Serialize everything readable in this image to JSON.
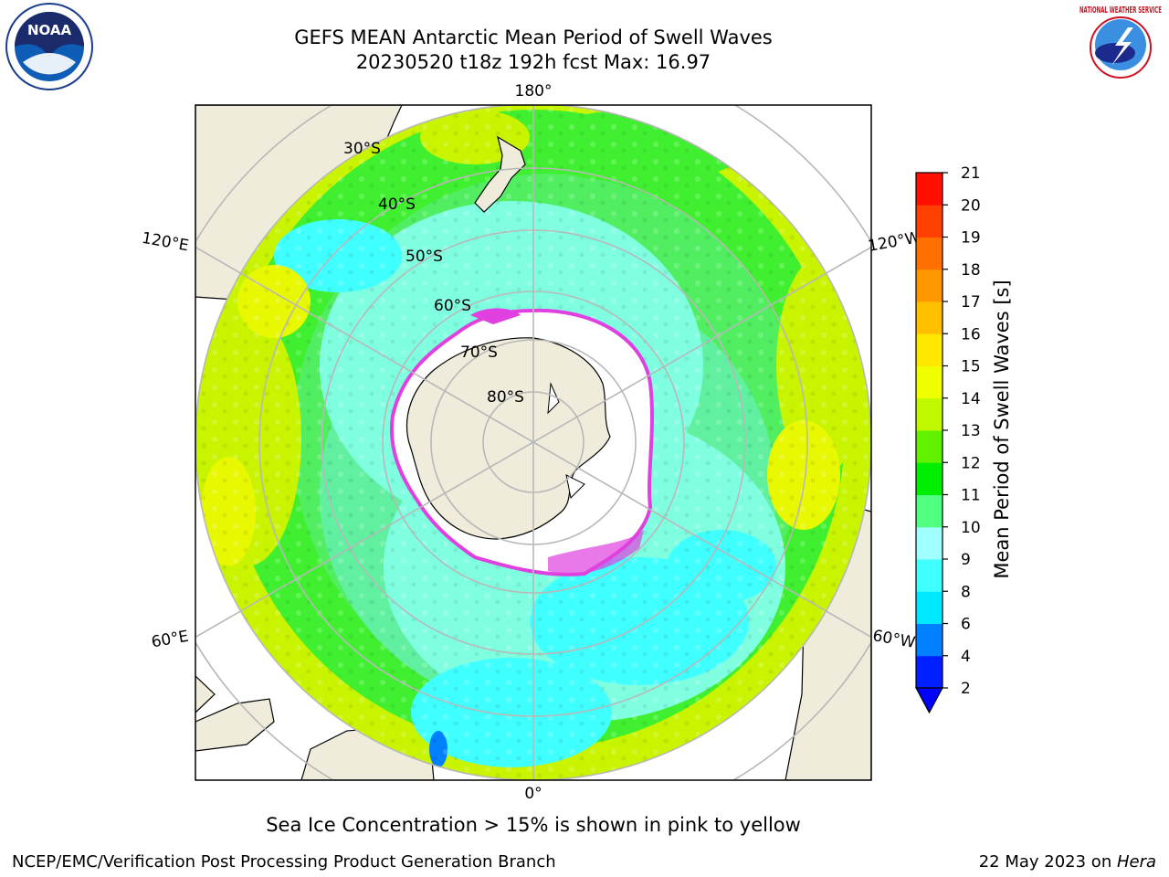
{
  "title_line1": "GEFS MEAN Antarctic Mean Period of Swell Waves",
  "title_line2": "20230520 t18z 192h fcst   Max: 16.97",
  "map": {
    "lon_labels": [
      "180°",
      "120°E",
      "120°W",
      "60°E",
      "60°W",
      "0°"
    ],
    "lat_labels": [
      "30°S",
      "40°S",
      "50°S",
      "60°S",
      "70°S",
      "80°S"
    ],
    "land_color": "#efecdc",
    "ice_color": "#ffffff",
    "ice_edge_color": "#e040e0"
  },
  "colorbar": {
    "label": "Mean Period of Swell Waves [s]",
    "ticks": [
      "2",
      "4",
      "6",
      "8",
      "9",
      "10",
      "11",
      "12",
      "13",
      "14",
      "15",
      "16",
      "17",
      "18",
      "19",
      "20",
      "21"
    ],
    "colors": [
      "#0020ff",
      "#0080ff",
      "#00e8ff",
      "#40ffff",
      "#a0ffff",
      "#50ff80",
      "#00ee00",
      "#60f000",
      "#c0f800",
      "#f0ff00",
      "#ffe800",
      "#ffc000",
      "#ff9800",
      "#ff7000",
      "#ff4000",
      "#ff1000"
    ],
    "extend_color": "#0000ff"
  },
  "note": "Sea Ice Concentration > 15% is shown in pink to yellow",
  "credit": "NCEP/EMC/Verification Post Processing Product Generation Branch",
  "date_prefix": "22 May 2023 on ",
  "date_machine": "Hera",
  "logos": {
    "noaa_text": "NOAA",
    "nws_text": "NATIONAL WEATHER SERVICE"
  }
}
